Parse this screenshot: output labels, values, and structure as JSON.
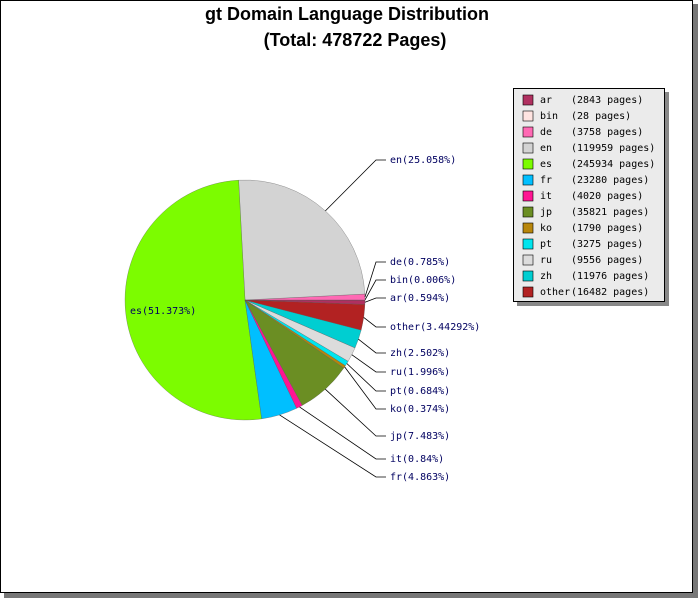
{
  "chart_data": {
    "type": "pie",
    "title": "gt Domain Language Distribution",
    "subtitle": "(Total: 478722 Pages)",
    "categories": [
      "ar",
      "bin",
      "de",
      "en",
      "es",
      "fr",
      "it",
      "jp",
      "ko",
      "pt",
      "ru",
      "zh",
      "other"
    ],
    "values": [
      0.594,
      0.006,
      0.785,
      25.058,
      51.373,
      4.863,
      0.84,
      7.483,
      0.374,
      0.684,
      1.996,
      2.502,
      3.44292
    ],
    "value_labels": [
      "ar(0.594%)",
      "bin(0.006%)",
      "de(0.785%)",
      "en(25.058%)",
      "es(51.373%)",
      "fr(4.863%)",
      "it(0.84%)",
      "jp(7.483%)",
      "ko(0.374%)",
      "pt(0.684%)",
      "ru(1.996%)",
      "zh(2.502%)",
      "other(3.44292%)"
    ],
    "colors": [
      "#b03060",
      "#ffe4e1",
      "#ff69b4",
      "#d3d3d3",
      "#7cfc00",
      "#00bfff",
      "#ff1493",
      "#6b8e23",
      "#b8860b",
      "#00e5ee",
      "#dcdcdc",
      "#00ced1",
      "#b22222"
    ],
    "legend_details": [
      "(2843 pages)",
      "(28 pages)",
      "(3758 pages)",
      "(119959 pages)",
      "(245934 pages)",
      "(23280 pages)",
      "(4020 pages)",
      "(35821 pages)",
      "(1790 pages)",
      "(3275 pages)",
      "(9556 pages)",
      "(11976 pages)",
      "(16482 pages)"
    ]
  }
}
